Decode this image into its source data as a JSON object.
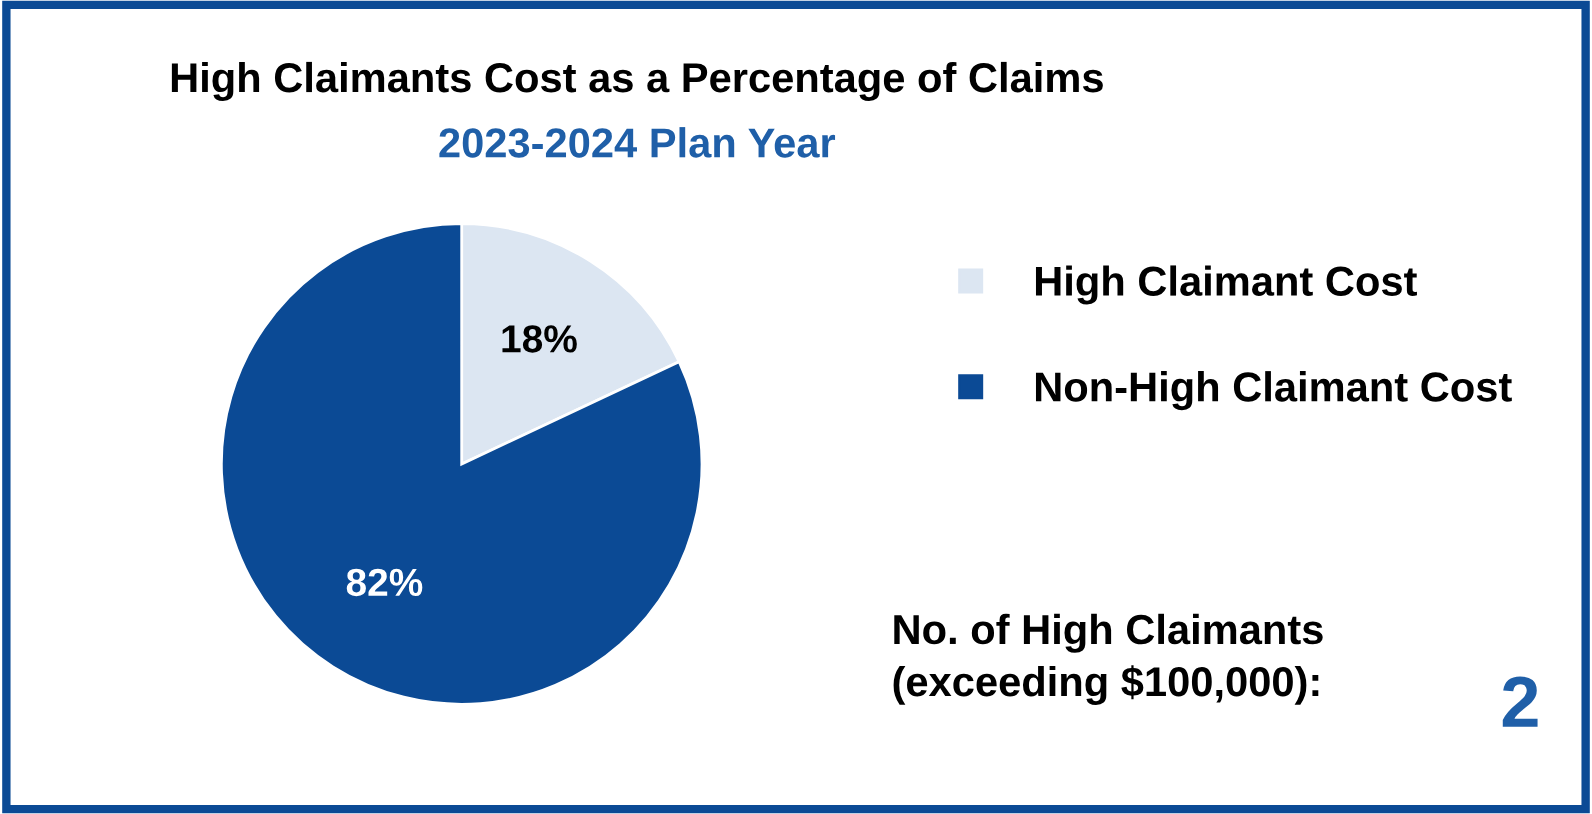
{
  "chart_data": {
    "type": "pie",
    "title": "High Claimants Cost as a Percentage of Claims",
    "subtitle": "2023-2024 Plan Year",
    "categories": [
      "High Claimant Cost",
      "Non-High Claimant Cost"
    ],
    "values": [
      18,
      82
    ],
    "colors": [
      "#dce6f2",
      "#0b4a95"
    ],
    "value_labels": [
      "18%",
      "82%"
    ],
    "legend": "right",
    "annotations": [
      "No. of High Claimants\n(exceeding $100,000):",
      "2"
    ]
  }
}
